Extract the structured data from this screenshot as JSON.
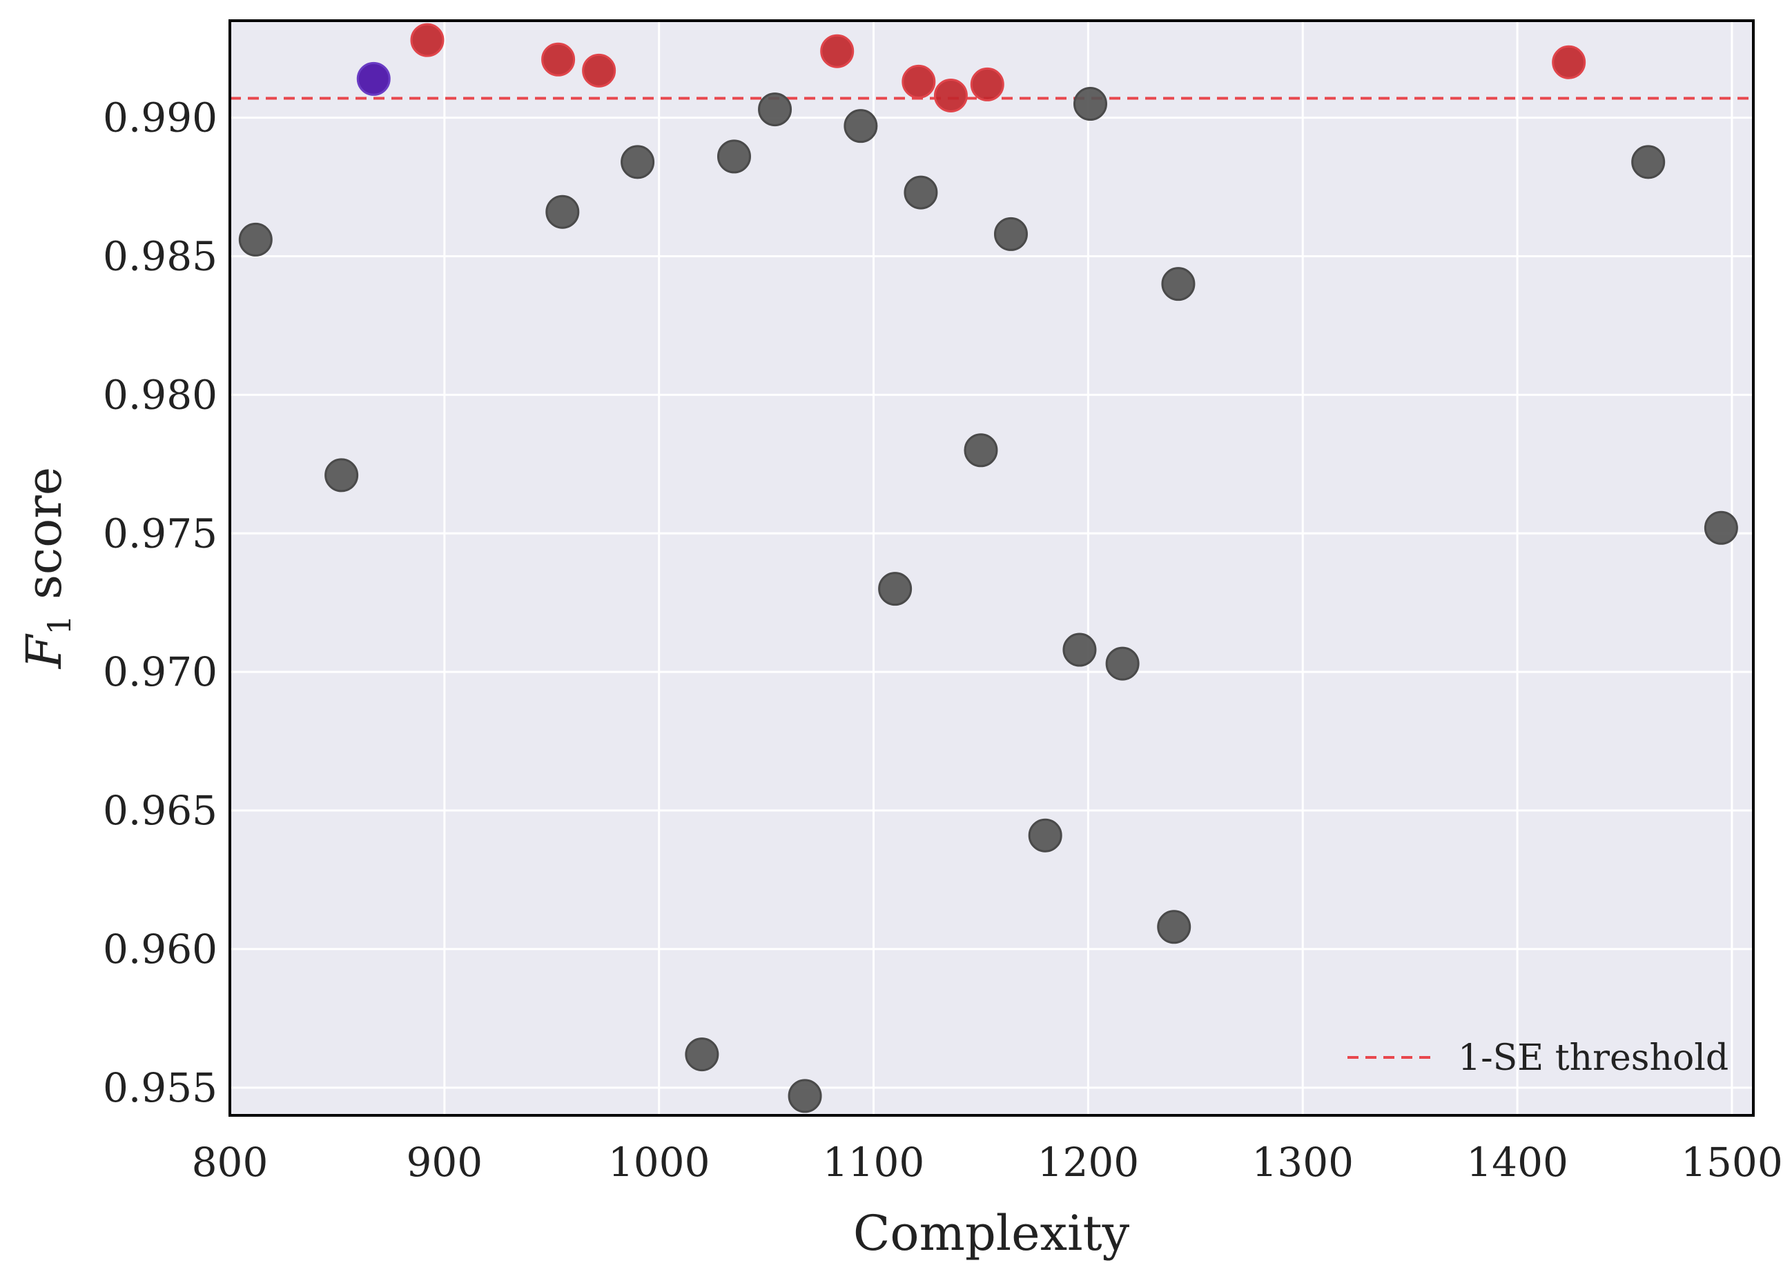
{
  "chart_data": {
    "type": "scatter",
    "title": "",
    "xlabel": "Complexity",
    "ylabel_main": "F",
    "ylabel_sub": "1",
    "ylabel_rest": " score",
    "xlim": [
      800,
      1510
    ],
    "ylim": [
      0.954,
      0.9935
    ],
    "xticks": [
      800,
      900,
      1000,
      1100,
      1200,
      1300,
      1400,
      1500
    ],
    "xtick_labels": [
      "800",
      "900",
      "1000",
      "1100",
      "1200",
      "1300",
      "1400",
      "1500"
    ],
    "yticks": [
      0.955,
      0.96,
      0.965,
      0.97,
      0.975,
      0.98,
      0.985,
      0.99
    ],
    "ytick_labels": [
      "0.955",
      "0.960",
      "0.965",
      "0.970",
      "0.975",
      "0.980",
      "0.985",
      "0.990"
    ],
    "grid": true,
    "legend_position": "bottom-right",
    "threshold": {
      "label": "1-SE threshold",
      "y": 0.9907,
      "color": "#e8484e"
    },
    "colors": {
      "plot_background": "#eaeaf2",
      "grid": "#ffffff",
      "below_threshold": "#555555",
      "above_threshold": "#c1272d",
      "selected": "#4a10a8"
    },
    "points": {
      "below_threshold": [
        [
          812,
          0.9856
        ],
        [
          852,
          0.9771
        ],
        [
          955,
          0.9866
        ],
        [
          990,
          0.9884
        ],
        [
          1020,
          0.9562
        ],
        [
          1035,
          0.9886
        ],
        [
          1054,
          0.9903
        ],
        [
          1068,
          0.9547
        ],
        [
          1094,
          0.9897
        ],
        [
          1110,
          0.973
        ],
        [
          1122,
          0.9873
        ],
        [
          1150,
          0.978
        ],
        [
          1164,
          0.9858
        ],
        [
          1180,
          0.9641
        ],
        [
          1196,
          0.9708
        ],
        [
          1201,
          0.9905
        ],
        [
          1216,
          0.9703
        ],
        [
          1240,
          0.9608
        ],
        [
          1242,
          0.984
        ],
        [
          1461,
          0.9884
        ],
        [
          1495,
          0.9752
        ]
      ],
      "above_threshold": [
        [
          892,
          0.9928
        ],
        [
          953,
          0.9921
        ],
        [
          972,
          0.9917
        ],
        [
          1083,
          0.9924
        ],
        [
          1121,
          0.9913
        ],
        [
          1136,
          0.9908
        ],
        [
          1153,
          0.9912
        ],
        [
          1424,
          0.992
        ]
      ],
      "selected": [
        [
          867,
          0.9914
        ]
      ]
    }
  }
}
